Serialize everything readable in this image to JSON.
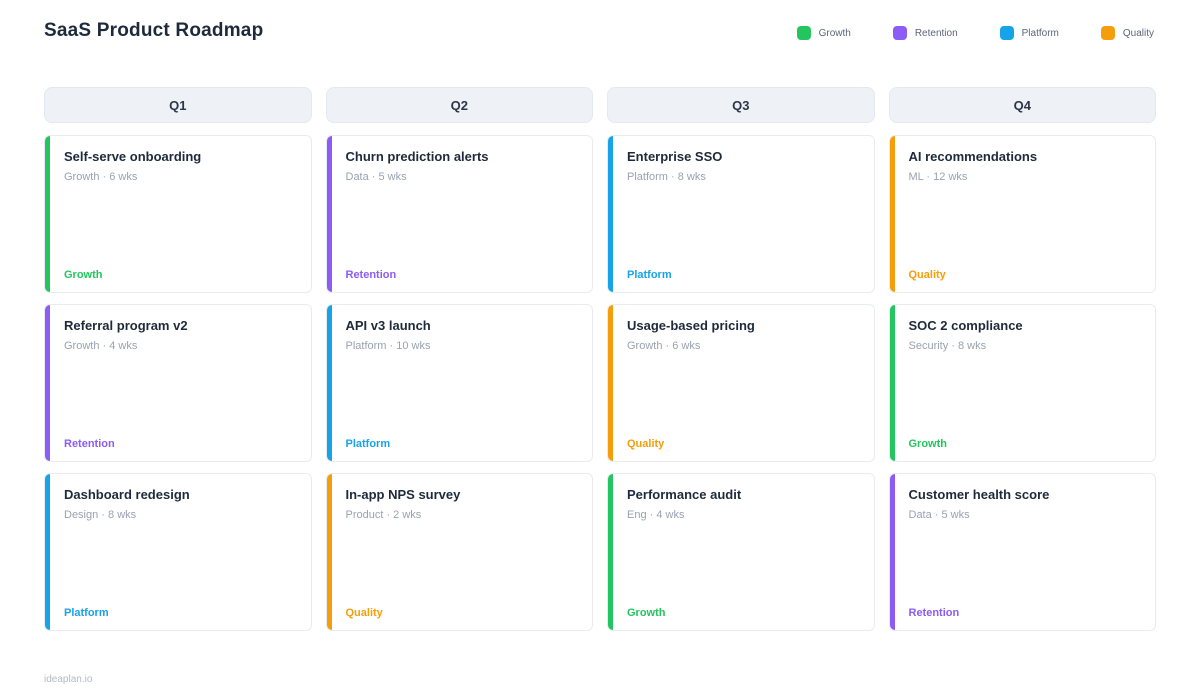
{
  "header": {
    "title": "SaaS Product Roadmap",
    "legend": [
      {
        "label": "Growth",
        "color": "#22c55e"
      },
      {
        "label": "Retention",
        "color": "#8b5cf6"
      },
      {
        "label": "Platform",
        "color": "#17a3e8"
      },
      {
        "label": "Quality",
        "color": "#f59e0b"
      }
    ]
  },
  "board": {
    "columns": [
      {
        "label": "Q1",
        "cards": [
          {
            "title": "Self-serve onboarding",
            "meta": "Growth · 6 wks",
            "tag": "Growth",
            "color": "#22c55e"
          },
          {
            "title": "Referral program v2",
            "meta": "Growth · 4 wks",
            "tag": "Retention",
            "color": "#8b5cf6"
          },
          {
            "title": "Dashboard redesign",
            "meta": "Design · 8 wks",
            "tag": "Platform",
            "color": "#17a3e8"
          }
        ]
      },
      {
        "label": "Q2",
        "cards": [
          {
            "title": "Churn prediction alerts",
            "meta": "Data · 5 wks",
            "tag": "Retention",
            "color": "#8b5cf6"
          },
          {
            "title": "API v3 launch",
            "meta": "Platform · 10 wks",
            "tag": "Platform",
            "color": "#17a3e8"
          },
          {
            "title": "In-app NPS survey",
            "meta": "Product · 2 wks",
            "tag": "Quality",
            "color": "#f59e0b"
          }
        ]
      },
      {
        "label": "Q3",
        "cards": [
          {
            "title": "Enterprise SSO",
            "meta": "Platform · 8 wks",
            "tag": "Platform",
            "color": "#17a3e8"
          },
          {
            "title": "Usage-based pricing",
            "meta": "Growth · 6 wks",
            "tag": "Quality",
            "color": "#f59e0b"
          },
          {
            "title": "Performance audit",
            "meta": "Eng · 4 wks",
            "tag": "Growth",
            "color": "#22c55e"
          }
        ]
      },
      {
        "label": "Q4",
        "cards": [
          {
            "title": "AI recommendations",
            "meta": "ML · 12 wks",
            "tag": "Quality",
            "color": "#f59e0b"
          },
          {
            "title": "SOC 2 compliance",
            "meta": "Security · 8 wks",
            "tag": "Growth",
            "color": "#22c55e"
          },
          {
            "title": "Customer health score",
            "meta": "Data · 5 wks",
            "tag": "Retention",
            "color": "#8b5cf6"
          }
        ]
      }
    ]
  },
  "footer": {
    "brand": "ideaplan.io"
  }
}
